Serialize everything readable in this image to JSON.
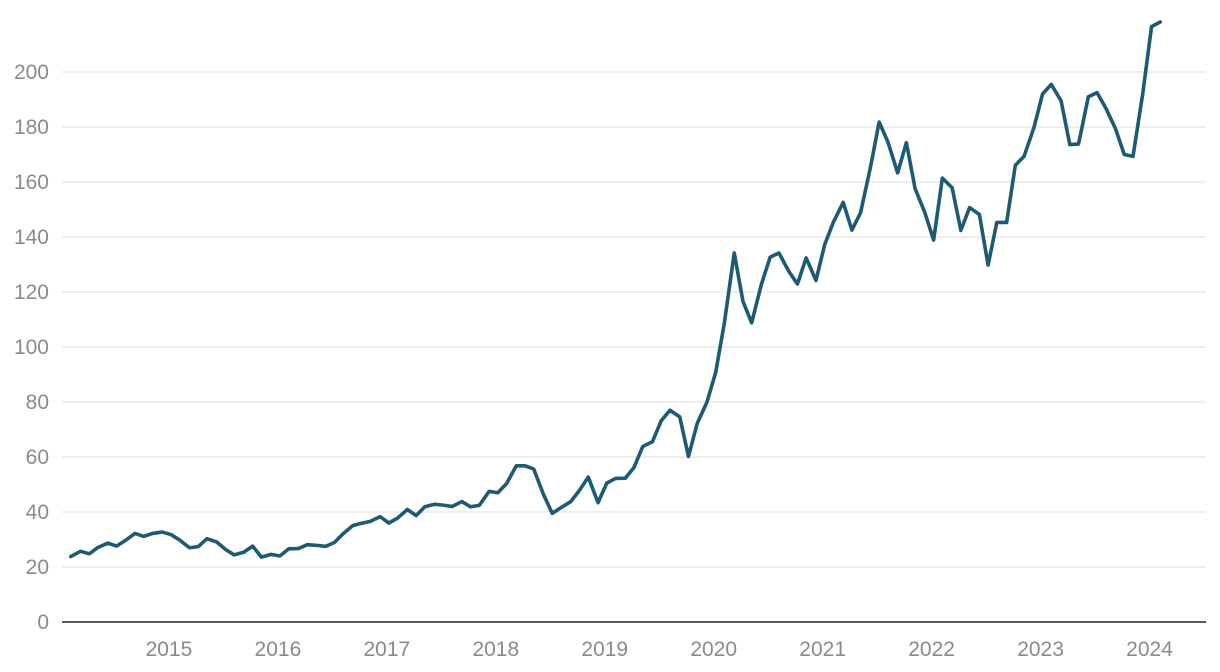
{
  "chart_data": {
    "type": "line",
    "title": "",
    "xlabel": "",
    "ylabel": "",
    "xlim": [
      2014.5,
      2025.0
    ],
    "ylim": [
      0,
      220
    ],
    "grid": true,
    "yticks": [
      0,
      20,
      40,
      60,
      80,
      100,
      120,
      140,
      160,
      180,
      200
    ],
    "xticks": [
      {
        "label": "2015",
        "value": 2015.0
      },
      {
        "label": "2016",
        "value": 2016.0
      },
      {
        "label": "2017",
        "value": 2017.0
      },
      {
        "label": "2018",
        "value": 2018.0
      },
      {
        "label": "2019",
        "value": 2019.0
      },
      {
        "label": "2020",
        "value": 2020.0
      },
      {
        "label": "2021",
        "value": 2021.0
      },
      {
        "label": "2022",
        "value": 2022.0
      },
      {
        "label": "2023",
        "value": 2023.0
      },
      {
        "label": "2024",
        "value": 2024.0
      }
    ],
    "series": [
      {
        "color": "#1d5a73",
        "points": [
          [
            2014.58,
            23.8
          ],
          [
            2014.67,
            25.7
          ],
          [
            2014.75,
            24.8
          ],
          [
            2014.83,
            27.1
          ],
          [
            2014.92,
            28.7
          ],
          [
            2015.0,
            27.6
          ],
          [
            2015.08,
            29.6
          ],
          [
            2015.17,
            32.2
          ],
          [
            2015.25,
            31.1
          ],
          [
            2015.33,
            32.2
          ],
          [
            2015.42,
            32.7
          ],
          [
            2015.5,
            31.8
          ],
          [
            2015.58,
            29.8
          ],
          [
            2015.67,
            27.0
          ],
          [
            2015.75,
            27.4
          ],
          [
            2015.83,
            30.3
          ],
          [
            2015.92,
            29.1
          ],
          [
            2016.0,
            26.4
          ],
          [
            2016.08,
            24.4
          ],
          [
            2016.17,
            25.4
          ],
          [
            2016.25,
            27.6
          ],
          [
            2016.33,
            23.6
          ],
          [
            2016.42,
            24.6
          ],
          [
            2016.5,
            24.0
          ],
          [
            2016.58,
            26.6
          ],
          [
            2016.67,
            26.7
          ],
          [
            2016.75,
            28.1
          ],
          [
            2016.83,
            27.9
          ],
          [
            2016.92,
            27.5
          ],
          [
            2017.0,
            28.9
          ],
          [
            2017.08,
            32.1
          ],
          [
            2017.17,
            35.1
          ],
          [
            2017.25,
            35.9
          ],
          [
            2017.33,
            36.6
          ],
          [
            2017.42,
            38.3
          ],
          [
            2017.5,
            36.0
          ],
          [
            2017.58,
            37.8
          ],
          [
            2017.67,
            40.9
          ],
          [
            2017.75,
            38.7
          ],
          [
            2017.83,
            41.9
          ],
          [
            2017.92,
            42.8
          ],
          [
            2018.0,
            42.5
          ],
          [
            2018.08,
            42.0
          ],
          [
            2018.17,
            43.8
          ],
          [
            2018.25,
            41.9
          ],
          [
            2018.33,
            42.4
          ],
          [
            2018.42,
            47.5
          ],
          [
            2018.5,
            47.0
          ],
          [
            2018.58,
            50.3
          ],
          [
            2018.67,
            56.8
          ],
          [
            2018.75,
            56.8
          ],
          [
            2018.83,
            55.6
          ],
          [
            2018.92,
            46.3
          ],
          [
            2019.0,
            39.5
          ],
          [
            2019.08,
            41.6
          ],
          [
            2019.17,
            43.8
          ],
          [
            2019.25,
            47.9
          ],
          [
            2019.33,
            52.7
          ],
          [
            2019.42,
            43.4
          ],
          [
            2019.5,
            50.5
          ],
          [
            2019.58,
            52.2
          ],
          [
            2019.67,
            52.3
          ],
          [
            2019.75,
            56.2
          ],
          [
            2019.83,
            63.8
          ],
          [
            2019.92,
            65.6
          ],
          [
            2020.0,
            73.2
          ],
          [
            2020.08,
            77.0
          ],
          [
            2020.17,
            74.6
          ],
          [
            2020.25,
            60.2
          ],
          [
            2020.33,
            72.2
          ],
          [
            2020.42,
            80.0
          ],
          [
            2020.5,
            90.8
          ],
          [
            2020.58,
            108.9
          ],
          [
            2020.67,
            134.2
          ],
          [
            2020.75,
            116.6
          ],
          [
            2020.83,
            108.8
          ],
          [
            2020.92,
            122.9
          ],
          [
            2021.0,
            132.7
          ],
          [
            2021.08,
            134.2
          ],
          [
            2021.17,
            127.6
          ],
          [
            2021.25,
            122.9
          ],
          [
            2021.33,
            132.4
          ],
          [
            2021.42,
            124.2
          ],
          [
            2021.5,
            137.2
          ],
          [
            2021.58,
            145.4
          ],
          [
            2021.67,
            152.6
          ],
          [
            2021.75,
            142.5
          ],
          [
            2021.83,
            148.9
          ],
          [
            2021.92,
            165.3
          ],
          [
            2022.0,
            181.8
          ],
          [
            2022.08,
            174.6
          ],
          [
            2022.17,
            163.3
          ],
          [
            2022.25,
            174.3
          ],
          [
            2022.33,
            157.6
          ],
          [
            2022.42,
            148.8
          ],
          [
            2022.5,
            138.9
          ],
          [
            2022.58,
            161.4
          ],
          [
            2022.67,
            157.9
          ],
          [
            2022.75,
            142.4
          ],
          [
            2022.83,
            150.7
          ],
          [
            2022.92,
            148.2
          ],
          [
            2023.0,
            129.8
          ],
          [
            2023.08,
            145.3
          ],
          [
            2023.17,
            145.3
          ],
          [
            2023.25,
            166.1
          ],
          [
            2023.33,
            169.3
          ],
          [
            2023.42,
            179.7
          ],
          [
            2023.5,
            192.0
          ],
          [
            2023.58,
            195.5
          ],
          [
            2023.67,
            189.5
          ],
          [
            2023.75,
            173.6
          ],
          [
            2023.83,
            173.8
          ],
          [
            2023.92,
            191.0
          ],
          [
            2024.0,
            192.5
          ],
          [
            2024.08,
            186.9
          ],
          [
            2024.17,
            179.3
          ],
          [
            2024.25,
            170.0
          ],
          [
            2024.33,
            169.3
          ],
          [
            2024.42,
            192.3
          ],
          [
            2024.5,
            216.5
          ],
          [
            2024.58,
            218.2
          ]
        ]
      }
    ]
  }
}
